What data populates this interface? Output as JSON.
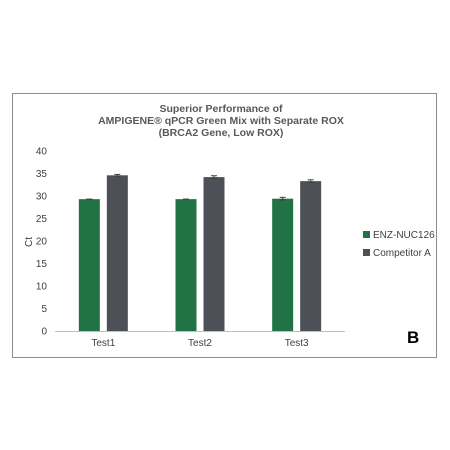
{
  "chart_data": {
    "type": "bar",
    "title_lines": [
      "Superior Performance of",
      "AMPIGENE® qPCR Green Mix with Separate ROX",
      "(BRCA2 Gene, Low ROX)"
    ],
    "xlabel": "",
    "ylabel": "Ct",
    "categories": [
      "Test1",
      "Test2",
      "Test3"
    ],
    "series": [
      {
        "name": "ENZ-NUC126",
        "values": [
          29.3,
          29.3,
          29.4
        ],
        "errors": [
          0.0,
          0.0,
          0.3
        ]
      },
      {
        "name": "Competitor A",
        "values": [
          34.6,
          34.2,
          33.3
        ],
        "errors": [
          0.2,
          0.3,
          0.3
        ]
      }
    ],
    "ylim": [
      0,
      40
    ],
    "yticks": [
      0,
      5,
      10,
      15,
      20,
      25,
      30,
      35,
      40
    ],
    "grid": false,
    "legend_position": "right",
    "colors": [
      "#217346",
      "#4d5057"
    ]
  },
  "panel_letter": "B"
}
